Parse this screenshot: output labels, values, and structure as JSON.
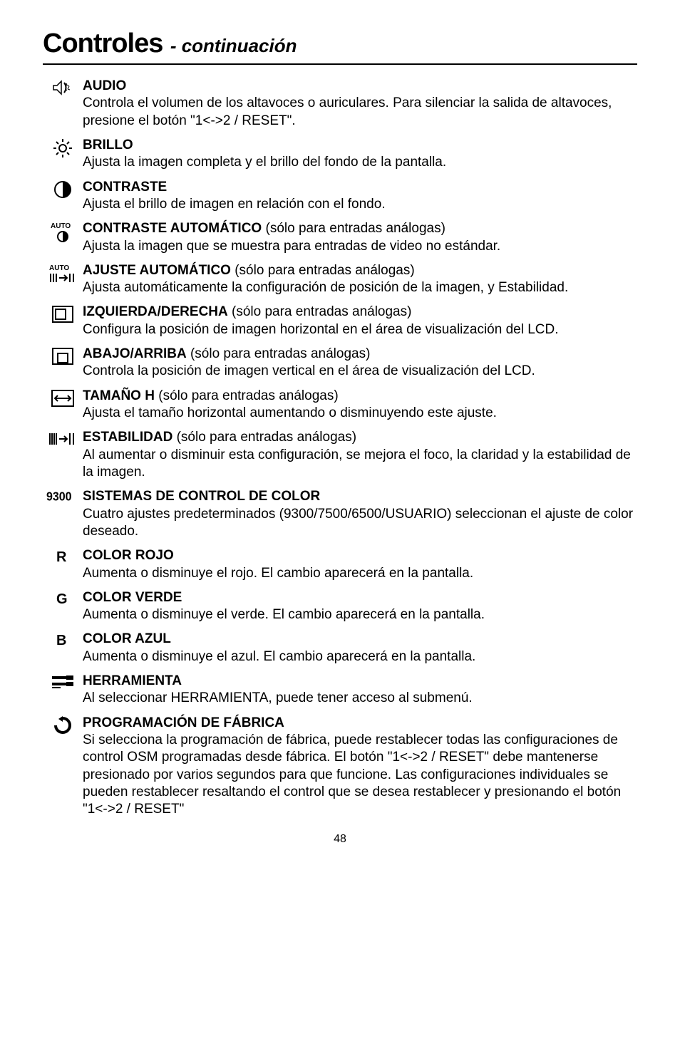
{
  "title": {
    "main": "Controles",
    "sub": "- continuación"
  },
  "items": [
    {
      "icon": "audio",
      "heading": "AUDIO",
      "inline": "",
      "body": "Controla el volumen de los altavoces o auriculares. Para silenciar la salida de altavoces, presione el botón \"1<->2 / RESET\"."
    },
    {
      "icon": "brightness",
      "heading": "BRILLO",
      "inline": "",
      "body": "Ajusta la imagen completa y el brillo del fondo de la pantalla."
    },
    {
      "icon": "contrast",
      "heading": "CONTRASTE",
      "inline": "",
      "body": "Ajusta el brillo de imagen en relación con el fondo."
    },
    {
      "icon": "auto-contrast",
      "heading": "CONTRASTE AUTOMÁTICO",
      "inline": " (sólo para entradas análogas)",
      "body": "Ajusta la imagen que se muestra para entradas de video no estándar."
    },
    {
      "icon": "auto-adjust",
      "heading": "AJUSTE AUTOMÁTICO",
      "inline": " (sólo para entradas análogas)",
      "body": "Ajusta automáticamente la configuración de posición de la imagen,  y Estabilidad."
    },
    {
      "icon": "left-right",
      "heading": "IZQUIERDA/DERECHA",
      "inline": " (sólo para entradas análogas)",
      "body": "Configura la posición de imagen horizontal en el área de visualización del LCD."
    },
    {
      "icon": "up-down",
      "heading": "ABAJO/ARRIBA",
      "inline": " (sólo para entradas análogas)",
      "body": "Controla la posición de imagen vertical en el área de visualización del LCD."
    },
    {
      "icon": "hsize",
      "heading": "TAMAÑO H",
      "inline": " (sólo para entradas análogas)",
      "body": "Ajusta el tamaño horizontal aumentando o disminuyendo este ajuste."
    },
    {
      "icon": "fine",
      "heading": "ESTABILIDAD",
      "inline": " (sólo para entradas análogas)",
      "body": "Al aumentar o disminuir esta configuración, se mejora el foco, la claridad y la estabilidad de la imagen."
    },
    {
      "icon": "c9300",
      "heading": "SISTEMAS DE CONTROL DE COLOR",
      "inline": "",
      "body": "Cuatro ajustes predeterminados (9300/7500/6500/USUARIO) seleccionan el ajuste de color deseado."
    },
    {
      "icon": "R",
      "heading": "COLOR ROJO",
      "inline": "",
      "body": "Aumenta o disminuye el rojo. El cambio aparecerá en la pantalla."
    },
    {
      "icon": "G",
      "heading": "COLOR VERDE",
      "inline": "",
      "body": "Aumenta o disminuye el verde. El cambio aparecerá en la pantalla."
    },
    {
      "icon": "B",
      "heading": "COLOR AZUL",
      "inline": "",
      "body": "Aumenta o disminuye el azul. El cambio aparecerá en la pantalla."
    },
    {
      "icon": "tools",
      "heading": "HERRAMIENTA",
      "inline": "",
      "body": "Al seleccionar HERRAMIENTA, puede tener acceso al submenú."
    },
    {
      "icon": "factory",
      "heading": "PROGRAMACIÓN DE FÁBRICA",
      "inline": "",
      "body": "Si selecciona la programación de fábrica, puede restablecer todas las configuraciones de control OSM programadas desde fábrica. El botón \"1<->2 / RESET\" debe mantenerse presionado por varios segundos para que funcione. Las configuraciones individuales se pueden restablecer resaltando el control que se desea restablecer y presionando el botón \"1<->2 / RESET\""
    }
  ],
  "pagenum": "48",
  "colors": {
    "text": "#000000",
    "bg": "#ffffff"
  }
}
